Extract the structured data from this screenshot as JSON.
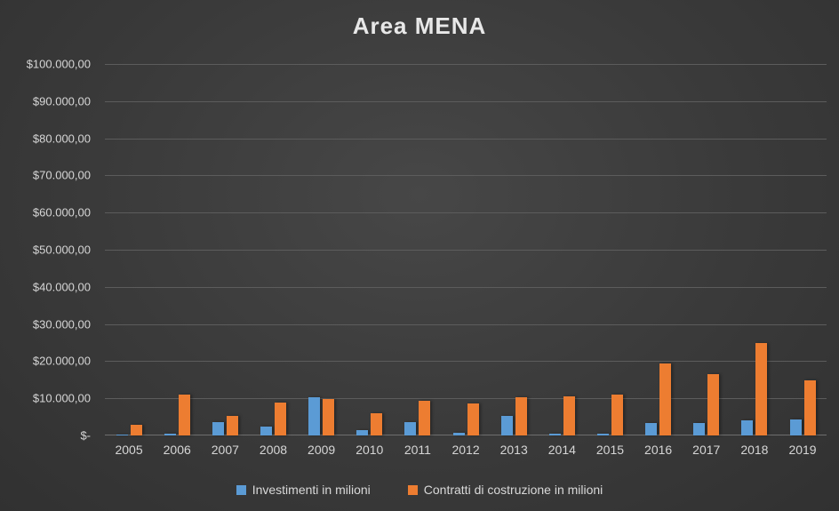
{
  "chart_data": {
    "type": "bar",
    "title": "Area MENA",
    "xlabel": "",
    "ylabel": "",
    "ylim": [
      0,
      100000
    ],
    "grid": true,
    "legend_position": "bottom",
    "background": "dark-gray-gradient",
    "categories": [
      "2005",
      "2006",
      "2007",
      "2008",
      "2009",
      "2010",
      "2011",
      "2012",
      "2013",
      "2014",
      "2015",
      "2016",
      "2017",
      "2018",
      "2019"
    ],
    "series": [
      {
        "name": "Investimenti in milioni",
        "color": "#5B9BD5",
        "values": [
          150,
          500,
          3500,
          2400,
          10400,
          1500,
          3700,
          800,
          5300,
          400,
          400,
          3300,
          3400,
          4000,
          4200
        ]
      },
      {
        "name": "Contratti di costruzione in milioni",
        "color": "#ED7D31",
        "values": [
          2800,
          10900,
          5200,
          8800,
          9900,
          5900,
          9300,
          8700,
          10300,
          10600,
          11000,
          19500,
          16400,
          24800,
          14800
        ]
      }
    ],
    "y_ticks": [
      {
        "value": 0,
        "label": "$-"
      },
      {
        "value": 10000,
        "label": "$10.000,00"
      },
      {
        "value": 20000,
        "label": "$20.000,00"
      },
      {
        "value": 30000,
        "label": "$30.000,00"
      },
      {
        "value": 40000,
        "label": "$40.000,00"
      },
      {
        "value": 50000,
        "label": "$50.000,00"
      },
      {
        "value": 60000,
        "label": "$60.000,00"
      },
      {
        "value": 70000,
        "label": "$70.000,00"
      },
      {
        "value": 80000,
        "label": "$80.000,00"
      },
      {
        "value": 90000,
        "label": "$90.000,00"
      },
      {
        "value": 100000,
        "label": "$100.000,00"
      }
    ]
  }
}
